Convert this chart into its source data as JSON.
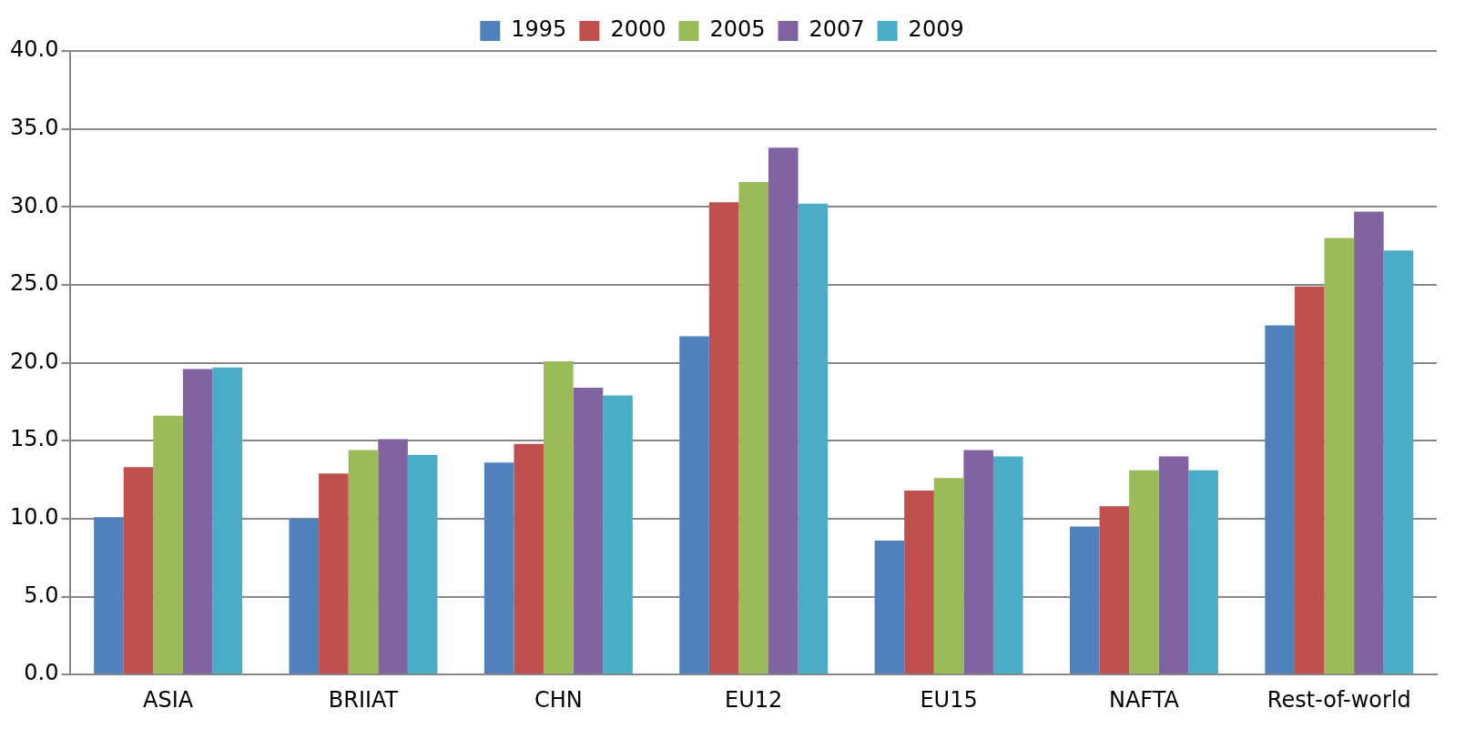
{
  "chart_data": {
    "type": "bar",
    "categories": [
      "ASIA",
      "BRIIAT",
      "CHN",
      "EU12",
      "EU15",
      "NAFTA",
      "Rest-of-world"
    ],
    "series": [
      {
        "name": "1995",
        "color": "#4f81bd",
        "values": [
          10.1,
          10.0,
          13.6,
          21.7,
          8.6,
          9.5,
          22.4
        ]
      },
      {
        "name": "2000",
        "color": "#c0504d",
        "values": [
          13.3,
          12.9,
          14.8,
          30.3,
          11.8,
          10.8,
          24.9
        ]
      },
      {
        "name": "2005",
        "color": "#9bbb59",
        "values": [
          16.6,
          14.4,
          20.1,
          31.6,
          12.6,
          13.1,
          28.0
        ]
      },
      {
        "name": "2007",
        "color": "#8064a2",
        "values": [
          19.6,
          15.1,
          18.4,
          33.8,
          14.4,
          14.0,
          29.7
        ]
      },
      {
        "name": "2009",
        "color": "#4bacc6",
        "values": [
          19.7,
          14.1,
          17.9,
          30.2,
          14.0,
          13.1,
          27.2
        ]
      }
    ],
    "ylim": [
      0,
      40
    ],
    "yticks": [
      {
        "value": 0,
        "label": "0.0"
      },
      {
        "value": 5,
        "label": "5.0"
      },
      {
        "value": 10,
        "label": "10.0"
      },
      {
        "value": 15,
        "label": "15.0"
      },
      {
        "value": 20,
        "label": "20.0"
      },
      {
        "value": 25,
        "label": "25.0"
      },
      {
        "value": 30,
        "label": "30.0"
      },
      {
        "value": 35,
        "label": "35.0"
      },
      {
        "value": 40,
        "label": "40.0"
      }
    ],
    "grid": "y",
    "legend": "top"
  }
}
